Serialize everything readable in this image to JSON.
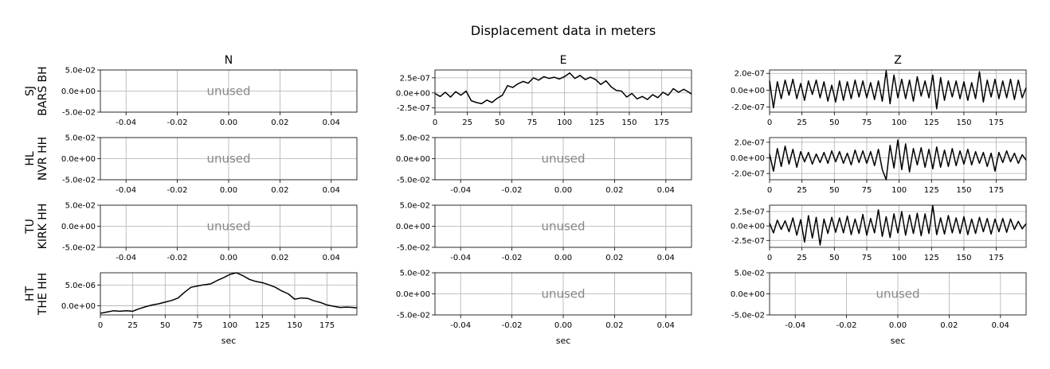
{
  "figure": {
    "title": "Displacement data in meters",
    "columns": [
      "N",
      "E",
      "Z"
    ],
    "xlabel": "sec",
    "unused_label": "unused"
  },
  "chart_data": [
    {
      "type": "line",
      "row": 0,
      "col": 0,
      "station": [
        "SJ",
        "BARS BH"
      ],
      "unused": true,
      "xlim": [
        -0.05,
        0.05
      ],
      "ylim": [
        -0.05,
        0.05
      ],
      "xticks": [
        "-0.04",
        "-0.02",
        "0.00",
        "0.02",
        "0.04"
      ],
      "xtick_values": [
        -0.04,
        -0.02,
        0,
        0.02,
        0.04
      ],
      "yticks": [
        "5.0e-02",
        "0.0e+00",
        "-5.0e-02"
      ],
      "ytick_values": [
        0.05,
        0,
        -0.05
      ]
    },
    {
      "type": "line",
      "row": 0,
      "col": 1,
      "station": [
        "SJ",
        "BARS BH"
      ],
      "unused": false,
      "xlim": [
        0,
        198
      ],
      "ylim": [
        -3.2e-07,
        3.8e-07
      ],
      "xticks": [
        "0",
        "25",
        "50",
        "75",
        "100",
        "125",
        "150",
        "175"
      ],
      "xtick_values": [
        0,
        25,
        50,
        75,
        100,
        125,
        150,
        175
      ],
      "yticks": [
        "2.5e-07",
        "0.0e+00",
        "-2.5e-07"
      ],
      "ytick_values": [
        2.5e-07,
        0,
        -2.5e-07
      ],
      "series": [
        {
          "x": [
            0,
            4,
            8,
            12,
            16,
            20,
            24,
            28,
            32,
            36,
            40,
            44,
            48,
            52,
            56,
            60,
            64,
            68,
            72,
            76,
            80,
            84,
            88,
            92,
            96,
            100,
            104,
            108,
            112,
            116,
            120,
            124,
            128,
            132,
            136,
            140,
            144,
            148,
            152,
            156,
            160,
            164,
            168,
            172,
            176,
            180,
            184,
            188,
            192,
            196,
            198
          ],
          "y": [
            -1e-08,
            -6e-08,
            1e-08,
            -7e-08,
            2e-08,
            -4e-08,
            3e-08,
            -1.3e-07,
            -1.6e-07,
            -1.8e-07,
            -1.2e-07,
            -1.6e-07,
            -9e-08,
            -4e-08,
            1.2e-07,
            9e-08,
            1.5e-07,
            1.9e-07,
            1.6e-07,
            2.5e-07,
            2.1e-07,
            2.7e-07,
            2.4e-07,
            2.6e-07,
            2.3e-07,
            2.7e-07,
            3.3e-07,
            2.4e-07,
            2.9e-07,
            2.2e-07,
            2.6e-07,
            2.2e-07,
            1.4e-07,
            2e-07,
            1e-07,
            4e-08,
            3e-08,
            -7e-08,
            -1e-08,
            -1e-07,
            -6e-08,
            -1.1e-07,
            -3e-08,
            -8e-08,
            1e-08,
            -4e-08,
            7e-08,
            1e-08,
            6e-08,
            1e-08,
            -2e-08
          ]
        }
      ]
    },
    {
      "type": "line",
      "row": 0,
      "col": 2,
      "station": [
        "SJ",
        "BARS BH"
      ],
      "unused": false,
      "xlim": [
        0,
        198
      ],
      "ylim": [
        -2.6e-07,
        2.4e-07
      ],
      "xticks": [
        "0",
        "25",
        "50",
        "75",
        "100",
        "125",
        "150",
        "175"
      ],
      "xtick_values": [
        0,
        25,
        50,
        75,
        100,
        125,
        150,
        175
      ],
      "yticks": [
        "2.0e-07",
        "0.0e+00",
        "-2.0e-07"
      ],
      "ytick_values": [
        2e-07,
        0,
        -2e-07
      ],
      "series": [
        {
          "x": [
            0,
            3,
            6,
            9,
            12,
            15,
            18,
            21,
            24,
            27,
            30,
            33,
            36,
            39,
            42,
            45,
            48,
            51,
            54,
            57,
            60,
            63,
            66,
            69,
            72,
            75,
            78,
            81,
            84,
            87,
            90,
            93,
            96,
            99,
            102,
            105,
            108,
            111,
            114,
            117,
            120,
            123,
            126,
            129,
            132,
            135,
            138,
            141,
            144,
            147,
            150,
            153,
            156,
            159,
            162,
            165,
            168,
            171,
            174,
            177,
            180,
            183,
            186,
            189,
            192,
            195,
            198
          ],
          "y": [
            1.1e-07,
            -2.1e-07,
            1e-07,
            -1e-07,
            1.2e-07,
            -6e-08,
            1.3e-07,
            -1e-07,
            8e-08,
            -1.2e-07,
            1.1e-07,
            -5e-08,
            1.2e-07,
            -9e-08,
            1e-07,
            -1.3e-07,
            6e-08,
            -1.4e-07,
            1.1e-07,
            -1.2e-07,
            1e-07,
            -1e-07,
            1.2e-07,
            -8e-08,
            1.1e-07,
            -9e-08,
            9e-08,
            -1.1e-07,
            1.1e-07,
            -1.3e-07,
            2.3e-07,
            -1.6e-07,
            1.8e-07,
            -9e-08,
            1.3e-07,
            -1e-07,
            1.2e-07,
            -1.3e-07,
            1.6e-07,
            -7e-08,
            1.1e-07,
            -9e-08,
            1.8e-07,
            -2.2e-07,
            1.5e-07,
            -1.2e-07,
            1.1e-07,
            -8e-08,
            1.1e-07,
            -1e-07,
            1e-07,
            -1.2e-07,
            9e-08,
            -1e-07,
            2.2e-07,
            -1.4e-07,
            1.2e-07,
            -8e-08,
            1.3e-07,
            -1e-07,
            1.1e-07,
            -9e-08,
            1.3e-07,
            -1.1e-07,
            1.2e-07,
            -9e-08,
            3e-08
          ]
        }
      ]
    },
    {
      "type": "line",
      "row": 1,
      "col": 0,
      "station": [
        "HL",
        "NVR HH"
      ],
      "unused": true,
      "xlim": [
        -0.05,
        0.05
      ],
      "ylim": [
        -0.05,
        0.05
      ],
      "xticks": [
        "-0.04",
        "-0.02",
        "0.00",
        "0.02",
        "0.04"
      ],
      "xtick_values": [
        -0.04,
        -0.02,
        0,
        0.02,
        0.04
      ],
      "yticks": [
        "5.0e-02",
        "0.0e+00",
        "-5.0e-02"
      ],
      "ytick_values": [
        0.05,
        0,
        -0.05
      ]
    },
    {
      "type": "line",
      "row": 1,
      "col": 1,
      "station": [
        "HL",
        "NVR HH"
      ],
      "unused": true,
      "xlim": [
        -0.05,
        0.05
      ],
      "ylim": [
        -0.05,
        0.05
      ],
      "xticks": [
        "-0.04",
        "-0.02",
        "0.00",
        "0.02",
        "0.04"
      ],
      "xtick_values": [
        -0.04,
        -0.02,
        0,
        0.02,
        0.04
      ],
      "yticks": [
        "5.0e-02",
        "0.0e+00",
        "-5.0e-02"
      ],
      "ytick_values": [
        0.05,
        0,
        -0.05
      ]
    },
    {
      "type": "line",
      "row": 1,
      "col": 2,
      "station": [
        "HL",
        "NVR HH"
      ],
      "unused": false,
      "xlim": [
        0,
        198
      ],
      "ylim": [
        -2.8e-07,
        2.6e-07
      ],
      "xticks": [
        "0",
        "25",
        "50",
        "75",
        "100",
        "125",
        "150",
        "175"
      ],
      "xtick_values": [
        0,
        25,
        50,
        75,
        100,
        125,
        150,
        175
      ],
      "yticks": [
        "2.0e-07",
        "0.0e+00",
        "-2.0e-07"
      ],
      "ytick_values": [
        2e-07,
        0,
        -2e-07
      ],
      "series": [
        {
          "x": [
            0,
            3,
            6,
            9,
            12,
            15,
            18,
            21,
            24,
            27,
            30,
            33,
            36,
            39,
            42,
            45,
            48,
            51,
            54,
            57,
            60,
            63,
            66,
            69,
            72,
            75,
            78,
            81,
            84,
            87,
            90,
            93,
            96,
            99,
            102,
            105,
            108,
            111,
            114,
            117,
            120,
            123,
            126,
            129,
            132,
            135,
            138,
            141,
            144,
            147,
            150,
            153,
            156,
            159,
            162,
            165,
            168,
            171,
            174,
            177,
            180,
            183,
            186,
            189,
            192,
            195,
            198
          ],
          "y": [
            5e-08,
            -1.7e-07,
            1.2e-07,
            -1.1e-07,
            1.5e-07,
            -8e-08,
            1.1e-07,
            -1.2e-07,
            8e-08,
            -5e-08,
            7e-08,
            -8e-08,
            5e-08,
            -6e-08,
            7e-08,
            -7e-08,
            9e-08,
            -5e-08,
            8e-08,
            -7e-08,
            6e-08,
            -9e-08,
            1e-07,
            -6e-08,
            9e-08,
            -7e-08,
            8e-08,
            -1e-07,
            1.1e-07,
            -1.5e-07,
            -2.8e-07,
            1.6e-07,
            -1.3e-07,
            2.3e-07,
            -1.5e-07,
            1.8e-07,
            -1.8e-07,
            1.2e-07,
            -9e-08,
            1.3e-07,
            -1.2e-07,
            1.1e-07,
            -1.4e-07,
            1.4e-07,
            -1.2e-07,
            1e-07,
            -1.1e-07,
            1.2e-07,
            -1e-07,
            9e-08,
            -8e-08,
            1.1e-07,
            -9e-08,
            8e-08,
            -7e-08,
            7e-08,
            -1.1e-07,
            6e-08,
            -1.7e-07,
            7e-08,
            -6e-08,
            9e-08,
            -5e-08,
            6e-08,
            -7e-08,
            4e-08,
            -3e-08
          ]
        }
      ]
    },
    {
      "type": "line",
      "row": 2,
      "col": 0,
      "station": [
        "TU",
        "KIRK HH"
      ],
      "unused": true,
      "xlim": [
        -0.05,
        0.05
      ],
      "ylim": [
        -0.05,
        0.05
      ],
      "xticks": [
        "-0.04",
        "-0.02",
        "0.00",
        "0.02",
        "0.04"
      ],
      "xtick_values": [
        -0.04,
        -0.02,
        0,
        0.02,
        0.04
      ],
      "yticks": [
        "5.0e-02",
        "0.0e+00",
        "-5.0e-02"
      ],
      "ytick_values": [
        0.05,
        0,
        -0.05
      ]
    },
    {
      "type": "line",
      "row": 2,
      "col": 1,
      "station": [
        "TU",
        "KIRK HH"
      ],
      "unused": true,
      "xlim": [
        -0.05,
        0.05
      ],
      "ylim": [
        -0.05,
        0.05
      ],
      "xticks": [
        "-0.04",
        "-0.02",
        "0.00",
        "0.02",
        "0.04"
      ],
      "xtick_values": [
        -0.04,
        -0.02,
        0,
        0.02,
        0.04
      ],
      "yticks": [
        "5.0e-02",
        "0.0e+00",
        "-5.0e-02"
      ],
      "ytick_values": [
        0.05,
        0,
        -0.05
      ]
    },
    {
      "type": "line",
      "row": 2,
      "col": 2,
      "station": [
        "TU",
        "KIRK HH"
      ],
      "unused": false,
      "xlim": [
        0,
        198
      ],
      "ylim": [
        -3.7e-07,
        3.6e-07
      ],
      "xticks": [
        "0",
        "25",
        "50",
        "75",
        "100",
        "125",
        "150",
        "175"
      ],
      "xtick_values": [
        0,
        25,
        50,
        75,
        100,
        125,
        150,
        175
      ],
      "yticks": [
        "2.5e-07",
        "0.0e+00",
        "-2.5e-07"
      ],
      "ytick_values": [
        2.5e-07,
        0,
        -2.5e-07
      ],
      "series": [
        {
          "x": [
            0,
            3,
            6,
            9,
            12,
            15,
            18,
            21,
            24,
            27,
            30,
            33,
            36,
            39,
            42,
            45,
            48,
            51,
            54,
            57,
            60,
            63,
            66,
            69,
            72,
            75,
            78,
            81,
            84,
            87,
            90,
            93,
            96,
            99,
            102,
            105,
            108,
            111,
            114,
            117,
            120,
            123,
            126,
            129,
            132,
            135,
            138,
            141,
            144,
            147,
            150,
            153,
            156,
            159,
            162,
            165,
            168,
            171,
            174,
            177,
            180,
            183,
            186,
            189,
            192,
            195,
            198
          ],
          "y": [
            5e-08,
            -1.2e-07,
            1e-07,
            -6e-08,
            9e-08,
            -1e-07,
            1.4e-07,
            -1.6e-07,
            1.1e-07,
            -2.8e-07,
            1.8e-07,
            -2.1e-07,
            1.5e-07,
            -3.3e-07,
            1.2e-07,
            -1.3e-07,
            1.5e-07,
            -1.1e-07,
            1.4e-07,
            -1.2e-07,
            1.7e-07,
            -1.5e-07,
            1.2e-07,
            -1.3e-07,
            2e-07,
            -1.6e-07,
            1.3e-07,
            -1.2e-07,
            2.8e-07,
            -1.8e-07,
            1.6e-07,
            -2e-07,
            2.1e-07,
            -1.2e-07,
            2.5e-07,
            -1.6e-07,
            1.9e-07,
            -1.3e-07,
            2.2e-07,
            -1.7e-07,
            2.1e-07,
            -1.3e-07,
            3.5e-07,
            -1.5e-07,
            1.4e-07,
            -1.4e-07,
            1.8e-07,
            -1.2e-07,
            1.4e-07,
            -1.3e-07,
            1.6e-07,
            -1.5e-07,
            1.2e-07,
            -1.3e-07,
            1.5e-07,
            -1e-07,
            1.3e-07,
            -1.4e-07,
            1.2e-07,
            -1e-07,
            1.3e-07,
            -1.1e-07,
            1.2e-07,
            -6e-08,
            8e-08,
            -5e-08,
            4e-08
          ]
        }
      ]
    },
    {
      "type": "line",
      "row": 3,
      "col": 0,
      "station": [
        "HT",
        "THE HH"
      ],
      "unused": false,
      "xlim": [
        0,
        198
      ],
      "ylim": [
        -2.2e-06,
        8e-06
      ],
      "xticks": [
        "0",
        "25",
        "50",
        "75",
        "100",
        "125",
        "150",
        "175"
      ],
      "xtick_values": [
        0,
        25,
        50,
        75,
        100,
        125,
        150,
        175
      ],
      "yticks": [
        "5.0e-06",
        "0.0e+00"
      ],
      "ytick_values": [
        5e-06,
        0
      ],
      "series": [
        {
          "x": [
            0,
            5,
            10,
            15,
            20,
            25,
            30,
            35,
            40,
            45,
            50,
            55,
            60,
            65,
            70,
            75,
            80,
            85,
            90,
            95,
            100,
            105,
            110,
            115,
            120,
            125,
            130,
            135,
            140,
            145,
            150,
            155,
            160,
            165,
            170,
            175,
            180,
            185,
            190,
            195,
            198
          ],
          "y": [
            -1.8e-06,
            -1.5e-06,
            -1.2e-06,
            -1.3e-06,
            -1.2e-06,
            -1.3e-06,
            -7e-07,
            -2e-07,
            2e-07,
            5e-07,
            9e-07,
            1.3e-06,
            1.9e-06,
            3.3e-06,
            4.5e-06,
            4.8e-06,
            5.1e-06,
            5.3e-06,
            6.1e-06,
            6.8e-06,
            7.6e-06,
            8e-06,
            7.3e-06,
            6.4e-06,
            5.9e-06,
            5.6e-06,
            5.1e-06,
            4.5e-06,
            3.6e-06,
            2.9e-06,
            1.6e-06,
            1.9e-06,
            1.8e-06,
            1.2e-06,
            8e-07,
            2e-07,
            -1e-07,
            -4e-07,
            -3e-07,
            -4e-07,
            -5e-07
          ]
        }
      ]
    },
    {
      "type": "line",
      "row": 3,
      "col": 1,
      "station": [
        "HT",
        "THE HH"
      ],
      "unused": true,
      "xlim": [
        -0.05,
        0.05
      ],
      "ylim": [
        -0.05,
        0.05
      ],
      "xticks": [
        "-0.04",
        "-0.02",
        "0.00",
        "0.02",
        "0.04"
      ],
      "xtick_values": [
        -0.04,
        -0.02,
        0,
        0.02,
        0.04
      ],
      "yticks": [
        "5.0e-02",
        "0.0e+00",
        "-5.0e-02"
      ],
      "ytick_values": [
        0.05,
        0,
        -0.05
      ]
    },
    {
      "type": "line",
      "row": 3,
      "col": 2,
      "station": [
        "HT",
        "THE HH"
      ],
      "unused": true,
      "xlim": [
        -0.05,
        0.05
      ],
      "ylim": [
        -0.05,
        0.05
      ],
      "xticks": [
        "-0.04",
        "-0.02",
        "0.00",
        "0.02",
        "0.04"
      ],
      "xtick_values": [
        -0.04,
        -0.02,
        0,
        0.02,
        0.04
      ],
      "yticks": [
        "5.0e-02",
        "0.0e+00",
        "-5.0e-02"
      ],
      "ytick_values": [
        0.05,
        0,
        -0.05
      ]
    }
  ]
}
